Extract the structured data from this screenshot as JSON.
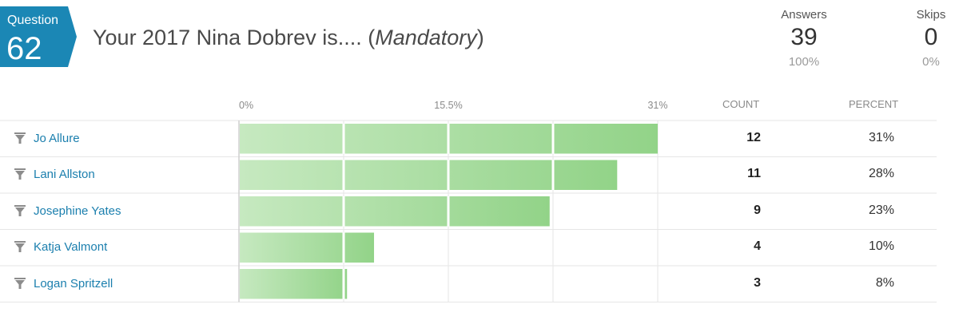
{
  "question": {
    "label": "Question",
    "number": "62",
    "title": "Your 2017 Nina Dobrev is....",
    "mandatory": "Mandatory"
  },
  "stats": {
    "answers": {
      "label": "Answers",
      "value": "39",
      "percent": "100%"
    },
    "skips": {
      "label": "Skips",
      "value": "0",
      "percent": "0%"
    }
  },
  "columns": {
    "count": "COUNT",
    "percent": "PERCENT"
  },
  "colors": {
    "bar_light": "#c6e9c0",
    "bar_dark": "#92d388",
    "accent": "#1b87b5",
    "grid": "#e6e6e6"
  },
  "chart_data": {
    "type": "bar",
    "orientation": "horizontal",
    "categories": [
      "Jo Allure",
      "Lani Allston",
      "Josephine Yates",
      "Katja Valmont",
      "Logan Spritzell"
    ],
    "values": [
      31,
      28,
      23,
      10,
      8
    ],
    "counts": [
      12,
      11,
      9,
      4,
      3
    ],
    "percent_labels": [
      "31%",
      "28%",
      "23%",
      "10%",
      "8%"
    ],
    "count_labels": [
      "12",
      "11",
      "9",
      "4",
      "3"
    ],
    "xlim": [
      0,
      31
    ],
    "ticks": [
      0,
      15.5,
      31
    ],
    "tick_labels": [
      "0%",
      "15.5%",
      "31%"
    ],
    "grid": true
  }
}
